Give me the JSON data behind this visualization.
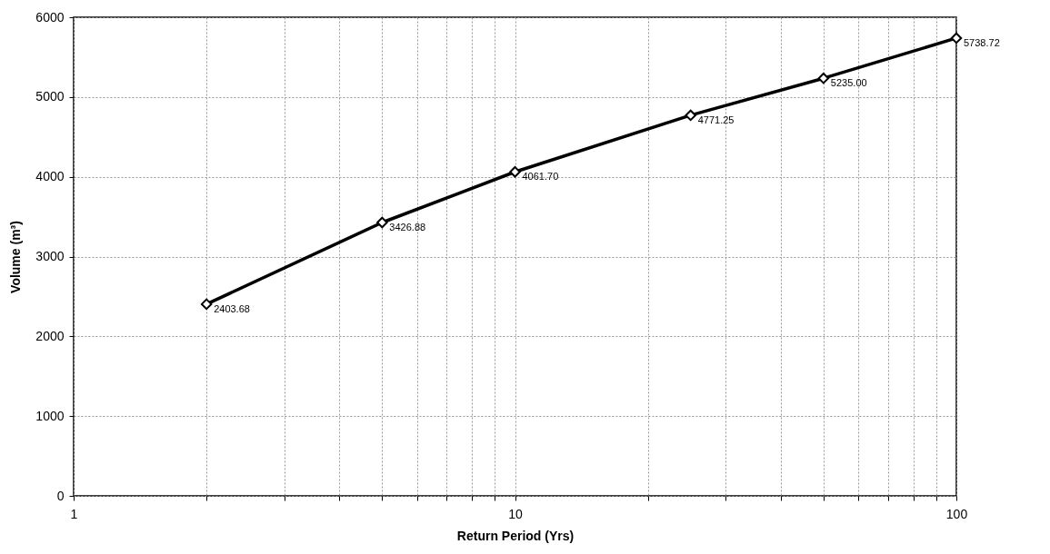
{
  "chart_data": {
    "type": "line",
    "xlabel": "Return Period (Yrs)",
    "ylabel": "Volume (m³)",
    "x": [
      2,
      5,
      10,
      25,
      50,
      100
    ],
    "series": [
      {
        "color": "#000000",
        "values": [
          2403.68,
          3426.88,
          4061.7,
          4771.25,
          5235.0,
          5738.72
        ],
        "value_labels": [
          "2403.68",
          "3426.88",
          "4061.70",
          "4771.25",
          "5235.00",
          "5738.72"
        ]
      }
    ],
    "log": "x",
    "xlim": [
      1,
      100
    ],
    "xticks": [
      1,
      {
        "value": 2,
        "label": null
      },
      {
        "value": 3,
        "label": null
      },
      {
        "value": 4,
        "label": null
      },
      {
        "value": 5,
        "label": null
      },
      {
        "value": 6,
        "label": null
      },
      {
        "value": 7,
        "label": null
      },
      {
        "value": 8,
        "label": null
      },
      {
        "value": 9,
        "label": null
      },
      10,
      {
        "value": 20,
        "label": null
      },
      {
        "value": 30,
        "label": null
      },
      {
        "value": 40,
        "label": null
      },
      {
        "value": 50,
        "label": null
      },
      {
        "value": 60,
        "label": null
      },
      {
        "value": 70,
        "label": null
      },
      {
        "value": 80,
        "label": null
      },
      {
        "value": 90,
        "label": null
      },
      100
    ],
    "ylim": [
      0,
      6000
    ],
    "yticks": [
      0,
      1000,
      2000,
      3000,
      4000,
      5000,
      6000
    ],
    "grid": true,
    "marker": "diamond",
    "line_style": "solid"
  }
}
